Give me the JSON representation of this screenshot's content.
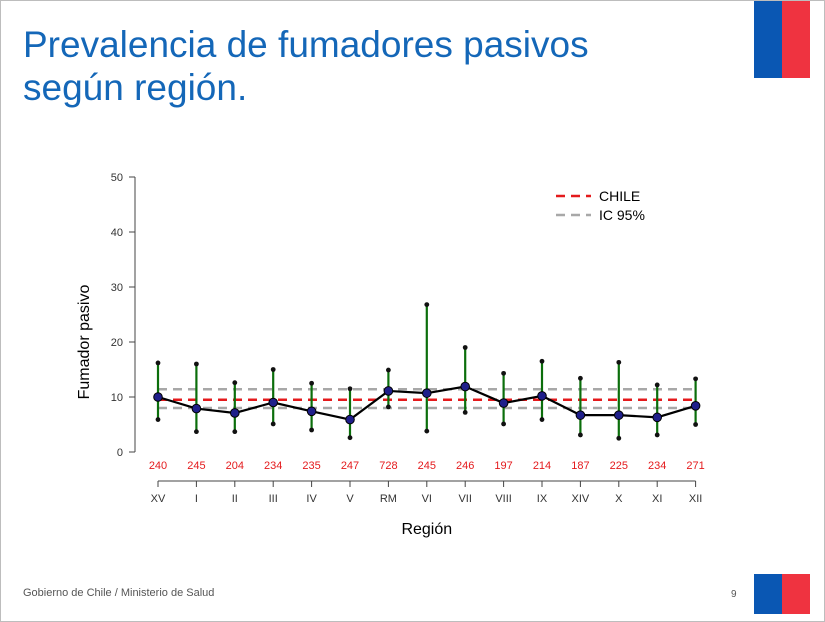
{
  "slide": {
    "title": "Prevalencia  de fumadores pasivos\nsegún región.",
    "footer": "Gobierno de Chile / Ministerio de Salud",
    "page_number": "9"
  },
  "colors": {
    "title": "#1467b8",
    "flag_blue": "#0a57b3",
    "flag_red": "#ef3340",
    "chile_line": "#e41a1c",
    "ci_line": "#a8a8a8",
    "error_bar": "#0b6e0b",
    "point": "#1f1f8a",
    "sample_label": "#e41a1c"
  },
  "chart_data": {
    "type": "line",
    "xlabel": "Región",
    "ylabel": "Fumador pasivo",
    "ylim": [
      0,
      50
    ],
    "yticks": [
      0,
      10,
      20,
      30,
      40,
      50
    ],
    "categories": [
      "XV",
      "I",
      "II",
      "III",
      "IV",
      "V",
      "RM",
      "VI",
      "VII",
      "VIII",
      "IX",
      "XIV",
      "X",
      "XI",
      "XII"
    ],
    "sample_sizes": [
      "240",
      "245",
      "204",
      "234",
      "235",
      "247",
      "728",
      "245",
      "246",
      "197",
      "214",
      "187",
      "225",
      "234",
      "271"
    ],
    "series": [
      {
        "values": [
          10.0,
          7.9,
          7.1,
          9.0,
          7.4,
          5.9,
          11.1,
          10.7,
          11.9,
          8.9,
          10.2,
          6.7,
          6.7,
          6.3,
          8.4
        ],
        "lower": [
          5.9,
          3.7,
          3.7,
          5.1,
          4.0,
          2.6,
          8.2,
          3.8,
          7.2,
          5.1,
          5.9,
          3.1,
          2.5,
          3.1,
          5.0
        ],
        "upper": [
          16.2,
          16.0,
          12.6,
          15.0,
          12.5,
          11.5,
          14.9,
          26.8,
          19.0,
          14.3,
          16.5,
          13.4,
          16.3,
          12.2,
          13.3
        ]
      }
    ],
    "reference_lines": [
      {
        "name": "CHILE",
        "value": 9.5,
        "style": "dashed",
        "color": "#e41a1c"
      },
      {
        "name": "IC 95%",
        "value": 11.4,
        "style": "dashed",
        "color": "#a8a8a8"
      },
      {
        "value": 8.0,
        "style": "dashed",
        "color": "#a8a8a8"
      }
    ],
    "legend": {
      "position": "top-right",
      "entries": [
        "CHILE",
        "IC 95%"
      ]
    },
    "grid": false
  }
}
